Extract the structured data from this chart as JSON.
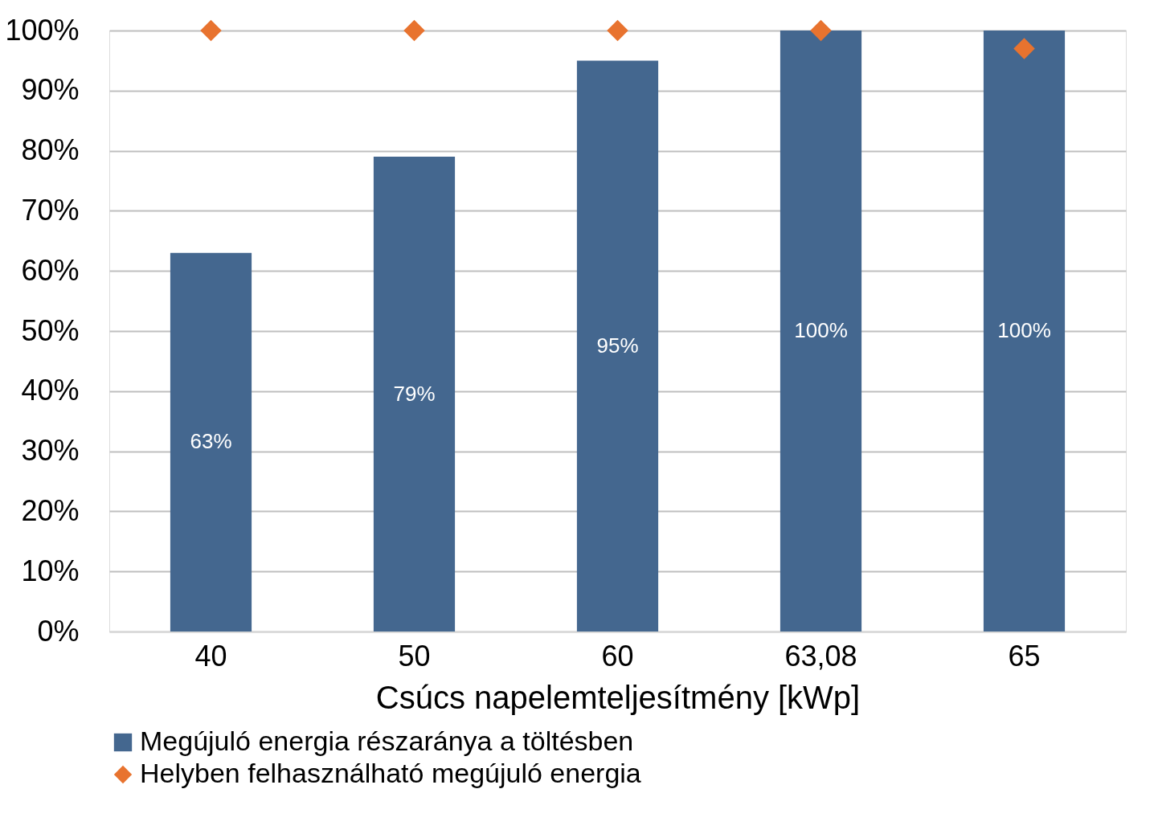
{
  "chart_data": {
    "type": "bar",
    "xlabel": "Csúcs napelemteljesítmény [kWp]",
    "categories": [
      "40",
      "50",
      "60",
      "63,08",
      "65"
    ],
    "series": [
      {
        "name": "Megújuló energia részaránya a töltésben",
        "color": "#44678f",
        "values": [
          63,
          79,
          95,
          100,
          100
        ],
        "value_labels": [
          "63%",
          "79%",
          "95%",
          "100%",
          "100%"
        ]
      },
      {
        "name": "Helyben felhasználható megújuló energia",
        "type": "scatter",
        "marker": "diamond",
        "color": "#e8732f",
        "values": [
          100,
          100,
          100,
          100,
          97
        ]
      }
    ],
    "ylim": [
      0,
      100
    ],
    "yticks": [
      {
        "value": 0,
        "label": "0%"
      },
      {
        "value": 10,
        "label": "10%"
      },
      {
        "value": 20,
        "label": "20%"
      },
      {
        "value": 30,
        "label": "30%"
      },
      {
        "value": 40,
        "label": "40%"
      },
      {
        "value": 50,
        "label": "50%"
      },
      {
        "value": 60,
        "label": "60%"
      },
      {
        "value": 70,
        "label": "70%"
      },
      {
        "value": 80,
        "label": "80%"
      },
      {
        "value": 90,
        "label": "90%"
      },
      {
        "value": 100,
        "label": "100%"
      }
    ],
    "grid": "y",
    "legend": "bottom"
  }
}
